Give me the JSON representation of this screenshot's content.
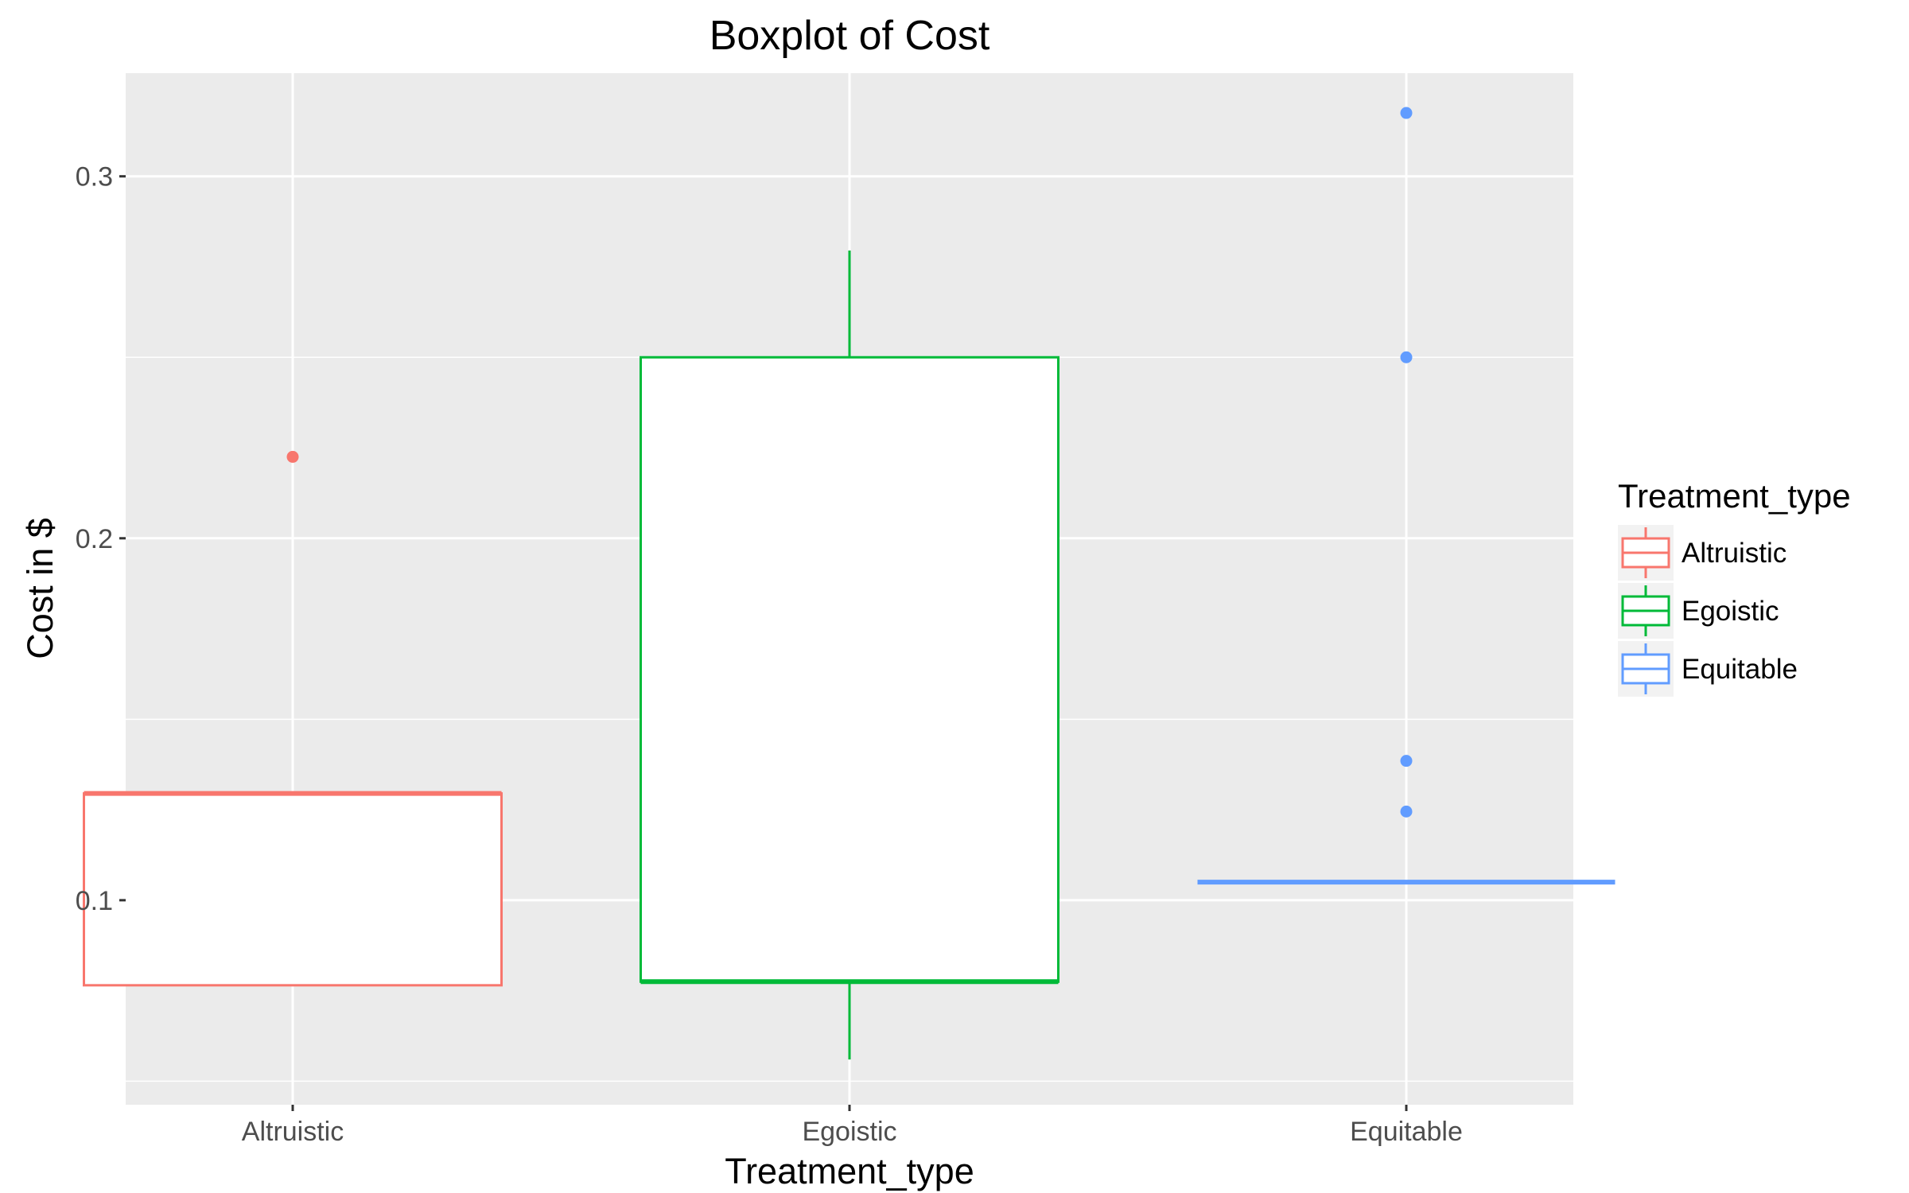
{
  "chart_data": {
    "type": "boxplot",
    "title": "Boxplot of Cost",
    "xlabel": "Treatment_type",
    "ylabel": "Cost in $",
    "categories": [
      "Altruistic",
      "Egoistic",
      "Equitable"
    ],
    "ylim": [
      0.0435,
      0.3285
    ],
    "y_ticks": [
      0.1,
      0.2,
      0.3
    ],
    "y_tick_labels": [
      "0.1",
      "0.2",
      "0.3"
    ],
    "grid": true,
    "legend": {
      "title": "Treatment_type",
      "position": "right",
      "entries": [
        "Altruistic",
        "Egoistic",
        "Equitable"
      ]
    },
    "series": [
      {
        "name": "Altruistic",
        "color": "#F8766D",
        "whisker_low": 0.0765,
        "q1": 0.0765,
        "median": 0.1295,
        "q3": 0.1295,
        "whisker_high": 0.1295,
        "outliers": [
          0.2225
        ]
      },
      {
        "name": "Egoistic",
        "color": "#00BA38",
        "whisker_low": 0.056,
        "q1": 0.0775,
        "median": 0.0775,
        "q3": 0.25,
        "whisker_high": 0.2795,
        "outliers": []
      },
      {
        "name": "Equitable",
        "color": "#619CFF",
        "whisker_low": 0.105,
        "q1": 0.105,
        "median": 0.105,
        "q3": 0.105,
        "whisker_high": 0.105,
        "outliers": [
          0.3175,
          0.25,
          0.1385,
          0.1245
        ]
      }
    ]
  }
}
